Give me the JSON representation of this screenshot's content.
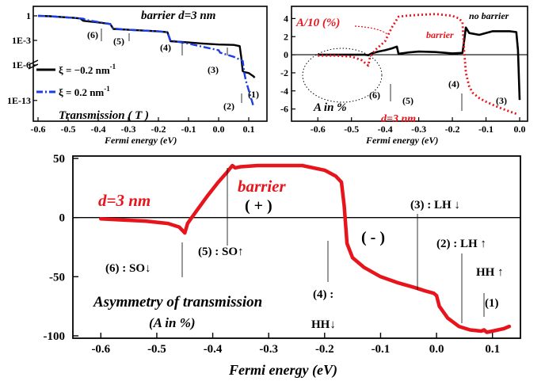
{
  "chart_data": [
    {
      "id": "panel-transmission",
      "type": "line",
      "title": "barrier d=3 nm",
      "ylabel": "Transmission ( T )",
      "xlabel": "Fermi energy (eV)",
      "y_scale": "log",
      "xlim": [
        -0.6,
        0.15
      ],
      "ylim_log10": [
        -16,
        1
      ],
      "x_ticks": [
        -0.6,
        -0.5,
        -0.4,
        -0.3,
        -0.2,
        -0.1,
        0.0,
        0.1
      ],
      "x_tick_labels": [
        "-0.6",
        "-0.5",
        "-0.4",
        "-0.3",
        "-0.2",
        "-0.1",
        "0.0",
        "0.1"
      ],
      "y_tick_labels": [
        {
          "log10": 0,
          "label": "1"
        },
        {
          "log10": -3,
          "label": "1E-3"
        },
        {
          "log10": -6,
          "label": "1E-6"
        },
        {
          "log10": -13,
          "label": "1E-13"
        }
      ],
      "axis_break_marker": "≈",
      "series": [
        {
          "name": "ξ = −0.2 nm⁻¹",
          "color": "#000000",
          "style": "solid",
          "x": [
            -0.6,
            -0.56,
            -0.52,
            -0.48,
            -0.46,
            -0.45,
            -0.44,
            -0.4,
            -0.36,
            -0.35,
            -0.3,
            -0.25,
            -0.2,
            -0.17,
            -0.16,
            -0.1,
            -0.05,
            0.0,
            0.05,
            0.07,
            0.075,
            0.08,
            0.085,
            0.1,
            0.115,
            0.12
          ],
          "log10_y": [
            0.0,
            -0.05,
            -0.15,
            -0.25,
            -0.32,
            -0.6,
            -0.65,
            -0.8,
            -1.0,
            -1.6,
            -1.7,
            -1.8,
            -1.9,
            -2.0,
            -3.1,
            -3.25,
            -3.4,
            -3.5,
            -3.55,
            -3.7,
            -5.0,
            -7.2,
            -7.4,
            -7.6,
            -8.2,
            -8.5
          ]
        },
        {
          "name": "ξ =  0.2 nm⁻¹",
          "color": "#1a3ee6",
          "style": "dashdot",
          "x": [
            -0.6,
            -0.56,
            -0.52,
            -0.48,
            -0.46,
            -0.45,
            -0.44,
            -0.4,
            -0.36,
            -0.35,
            -0.3,
            -0.25,
            -0.2,
            -0.17,
            -0.16,
            -0.1,
            -0.05,
            0.0,
            0.005,
            0.05,
            0.08,
            0.085,
            0.09,
            0.1,
            0.11,
            0.115
          ],
          "log10_y": [
            0.0,
            -0.05,
            -0.15,
            -0.25,
            -0.32,
            -0.35,
            -0.5,
            -0.75,
            -1.0,
            -1.55,
            -1.7,
            -1.8,
            -1.9,
            -2.0,
            -3.0,
            -3.4,
            -3.8,
            -4.2,
            -4.5,
            -5.0,
            -5.5,
            -7.5,
            -9.0,
            -11.0,
            -13.0,
            -14.0
          ]
        }
      ],
      "annotations": [
        "(6)",
        "(5)",
        "(4)",
        "(3)",
        "(2)",
        "(1)"
      ]
    },
    {
      "id": "panel-asymmetry-small",
      "type": "line",
      "title": "A/10 (%)",
      "ylabel": "A in %",
      "xlabel": "Fermi energy (eV)",
      "xlim": [
        -0.65,
        0.0
      ],
      "ylim": [
        -7,
        5
      ],
      "x_ticks": [
        -0.6,
        -0.5,
        -0.4,
        -0.3,
        -0.2,
        -0.1,
        0.0
      ],
      "x_tick_labels": [
        "-0.6",
        "-0.5",
        "-0.4",
        "-0.3",
        "-0.2",
        "-0.1",
        "0.0"
      ],
      "y_ticks": [
        4,
        2,
        0,
        -2,
        -4,
        -6
      ],
      "y_tick_labels": [
        "4",
        "2",
        "0",
        "-2",
        "-4",
        "-6"
      ],
      "series": [
        {
          "name": "no barrier",
          "color": "#000000",
          "style": "solid",
          "x": [
            -0.6,
            -0.55,
            -0.5,
            -0.46,
            -0.45,
            -0.44,
            -0.42,
            -0.4,
            -0.38,
            -0.365,
            -0.36,
            -0.33,
            -0.3,
            -0.25,
            -0.2,
            -0.17,
            -0.165,
            -0.16,
            -0.15,
            -0.12,
            -0.08,
            -0.05,
            -0.03,
            -0.01,
            -0.005,
            0.0
          ],
          "y": [
            0.0,
            0.0,
            0.0,
            0.0,
            -0.05,
            0.15,
            0.35,
            0.5,
            0.7,
            0.9,
            0.1,
            0.25,
            0.35,
            0.3,
            0.15,
            0.2,
            1.5,
            3.0,
            2.4,
            2.2,
            2.6,
            2.6,
            2.6,
            2.5,
            0.5,
            -5.0
          ]
        },
        {
          "name": "barrier",
          "color": "#e8141c",
          "style": "dotted",
          "x": [
            -0.6,
            -0.55,
            -0.5,
            -0.47,
            -0.45,
            -0.445,
            -0.43,
            -0.4,
            -0.38,
            -0.36,
            -0.34,
            -0.3,
            -0.25,
            -0.2,
            -0.18,
            -0.17,
            -0.165,
            -0.16,
            -0.15,
            -0.14,
            -0.12,
            -0.1,
            -0.07,
            -0.05,
            -0.02,
            -0.005
          ],
          "y": [
            -0.1,
            -0.1,
            -0.2,
            -0.6,
            -1.2,
            -0.3,
            0.5,
            1.5,
            3.0,
            4.2,
            4.3,
            4.4,
            4.5,
            4.3,
            4.0,
            3.6,
            0.5,
            -2.0,
            -3.5,
            -4.2,
            -4.8,
            -5.2,
            -5.7,
            -6.0,
            -6.4,
            -6.6
          ]
        }
      ],
      "annotations": [
        "no barrier",
        "barrier",
        "d=3 nm",
        "(6)",
        "(5)",
        "(4)",
        "(3)"
      ]
    },
    {
      "id": "panel-asymmetry-main",
      "type": "line",
      "title": "barrier",
      "xlabel": "Fermi energy (eV)",
      "xlim": [
        -0.65,
        0.15
      ],
      "ylim": [
        -100,
        50
      ],
      "x_ticks": [
        -0.6,
        -0.5,
        -0.4,
        -0.3,
        -0.2,
        -0.1,
        0.0,
        0.1
      ],
      "x_tick_labels": [
        "-0.6",
        "-0.5",
        "-0.4",
        "-0.3",
        "-0.2",
        "-0.1",
        "0.0",
        "0.1"
      ],
      "y_ticks": [
        50,
        0,
        -50,
        -100
      ],
      "y_tick_labels": [
        "50",
        "0",
        "-50",
        "-100"
      ],
      "series": [
        {
          "name": "d=3 nm",
          "color": "#e8141c",
          "style": "solid",
          "x": [
            -0.6,
            -0.56,
            -0.52,
            -0.48,
            -0.46,
            -0.45,
            -0.445,
            -0.43,
            -0.41,
            -0.39,
            -0.375,
            -0.365,
            -0.36,
            -0.35,
            -0.32,
            -0.28,
            -0.24,
            -0.2,
            -0.18,
            -0.17,
            -0.165,
            -0.16,
            -0.15,
            -0.13,
            -0.1,
            -0.07,
            -0.04,
            -0.02,
            -0.005,
            0.0,
            0.005,
            0.02,
            0.04,
            0.06,
            0.08,
            0.085,
            0.09,
            0.1,
            0.12,
            0.13
          ],
          "y": [
            -1,
            -2,
            -3,
            -5,
            -8,
            -13,
            -5,
            5,
            18,
            30,
            38,
            44,
            42,
            43,
            44,
            44,
            44,
            40,
            35,
            30,
            10,
            -22,
            -34,
            -42,
            -50,
            -55,
            -59,
            -62,
            -64,
            -66,
            -75,
            -85,
            -92,
            -95,
            -96,
            -95,
            -97,
            -96,
            -94,
            -92
          ]
        }
      ],
      "annotations": [
        "d=3 nm",
        "barrier",
        "( + )",
        "( - )",
        "(6) : SO↓",
        "(5) : SO↑",
        "(4) :",
        "HH↓",
        "(3) : LH ↓",
        "(2) : LH ↑",
        "HH ↑",
        "(1)",
        "Asymmetry of transmission",
        "(A in %)"
      ]
    }
  ],
  "labels": {
    "p1_title": "barrier d=3 nm",
    "p1_ylabel": "Transmission ( T )",
    "p1_xlabel": "Fermi energy (eV)",
    "p1_leg1": "ξ = −0.2 nm",
    "p1_leg2": "ξ =  0.2 nm",
    "p1_leg_sup": "-1",
    "p1_ann1": "(6)",
    "p1_ann2": "(5)",
    "p1_ann3": "(4)",
    "p1_ann4": "(3)",
    "p1_ann5": "(2)",
    "p1_ann6": "(1)",
    "p2_title": "A/10 (%)",
    "p2_nobarrier": "no barrier",
    "p2_barrier": "barrier",
    "p2_d": "d=3 nm",
    "p2_ylabel": "A in %",
    "p2_xlabel": "Fermi energy (eV)",
    "p2_ann6": "(6)",
    "p2_ann5": "(5)",
    "p2_ann4": "(4)",
    "p2_ann3": "(3)",
    "p3_d": "d=3 nm",
    "p3_barrier": "barrier",
    "p3_plus": "( + )",
    "p3_minus": "( - )",
    "p3_ann6": "(6) : SO↓",
    "p3_ann5": "(5) : SO↑",
    "p3_ann4a": "(4) :",
    "p3_ann4b": "HH↓",
    "p3_ann3": "(3) : LH ↓",
    "p3_ann2": "(2) : LH ↑",
    "p3_hh": "HH ↑",
    "p3_ann1": "(1)",
    "p3_asym": "Asymmetry of transmission",
    "p3_asym2": "(A in %)",
    "p3_xlabel": "Fermi energy (eV)"
  }
}
